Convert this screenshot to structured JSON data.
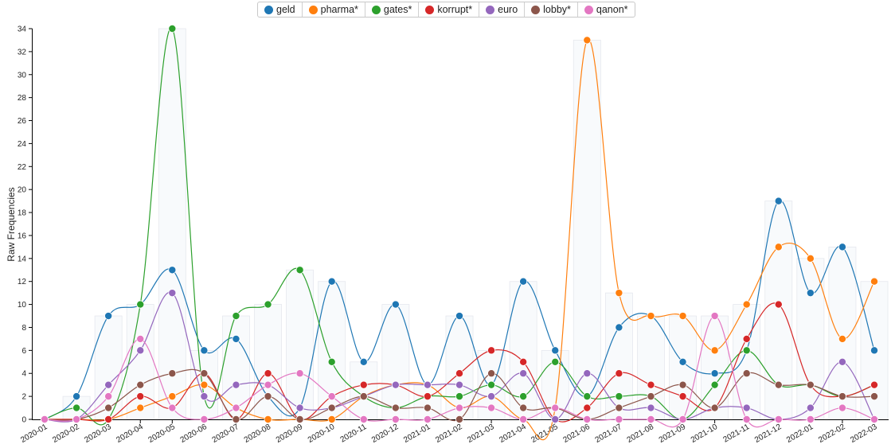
{
  "chart_data": {
    "type": "line",
    "ylabel": "Raw Frequencies",
    "xlabel": "",
    "ylim": [
      0,
      34
    ],
    "yticks": [
      0,
      2,
      4,
      6,
      8,
      10,
      12,
      14,
      16,
      18,
      20,
      22,
      24,
      26,
      28,
      30,
      32,
      34
    ],
    "legend_position": "top-center",
    "grid": false,
    "categories": [
      "2020-01",
      "2020-02",
      "2020-03",
      "2020-04",
      "2020-05",
      "2020-06",
      "2020-07",
      "2020-08",
      "2020-09",
      "2020-10",
      "2020-11",
      "2020-12",
      "2021-01",
      "2021-02",
      "2021-03",
      "2021-04",
      "2021-05",
      "2021-06",
      "2021-07",
      "2021-08",
      "2021-09",
      "2021-10",
      "2021-11",
      "2021-12",
      "2022-01",
      "2022-02",
      "2022-03"
    ],
    "series": [
      {
        "name": "geld",
        "color": "#1f77b4",
        "values": [
          0,
          2,
          9,
          10,
          13,
          6,
          7,
          2,
          1,
          12,
          5,
          10,
          3,
          9,
          3,
          12,
          6,
          2,
          8,
          9,
          5,
          4,
          6,
          19,
          11,
          15,
          6
        ]
      },
      {
        "name": "pharma*",
        "color": "#ff7f0e",
        "values": [
          0,
          0,
          0,
          1,
          2,
          3,
          1,
          0,
          0,
          0,
          2,
          3,
          3,
          1,
          2,
          0,
          1,
          33,
          11,
          9,
          9,
          6,
          10,
          15,
          14,
          7,
          12
        ]
      },
      {
        "name": "gates*",
        "color": "#2ca02c",
        "values": [
          0,
          1,
          0,
          10,
          34,
          2,
          9,
          10,
          13,
          5,
          2,
          1,
          2,
          2,
          3,
          2,
          5,
          2,
          2,
          2,
          0,
          3,
          6,
          3,
          3,
          2,
          3
        ]
      },
      {
        "name": "korrupt*",
        "color": "#d62728",
        "values": [
          0,
          0,
          0,
          2,
          1,
          4,
          0,
          4,
          0,
          2,
          3,
          3,
          2,
          4,
          6,
          5,
          0,
          1,
          4,
          3,
          2,
          1,
          7,
          10,
          3,
          2,
          3
        ]
      },
      {
        "name": "euro",
        "color": "#9467bd",
        "values": [
          0,
          0,
          3,
          6,
          11,
          2,
          3,
          3,
          1,
          1,
          2,
          3,
          3,
          3,
          2,
          4,
          0,
          4,
          1,
          1,
          0,
          1,
          1,
          0,
          1,
          5,
          0
        ]
      },
      {
        "name": "lobby*",
        "color": "#8c564b",
        "values": [
          0,
          0,
          1,
          3,
          4,
          4,
          0,
          2,
          0,
          1,
          2,
          1,
          1,
          0,
          4,
          1,
          1,
          0,
          1,
          2,
          3,
          1,
          4,
          3,
          3,
          2,
          2
        ]
      },
      {
        "name": "qanon*",
        "color": "#e377c2",
        "values": [
          0,
          0,
          2,
          7,
          1,
          0,
          1,
          3,
          4,
          2,
          0,
          0,
          0,
          1,
          1,
          0,
          1,
          0,
          0,
          0,
          0,
          9,
          0,
          0,
          0,
          1,
          0
        ]
      }
    ]
  }
}
